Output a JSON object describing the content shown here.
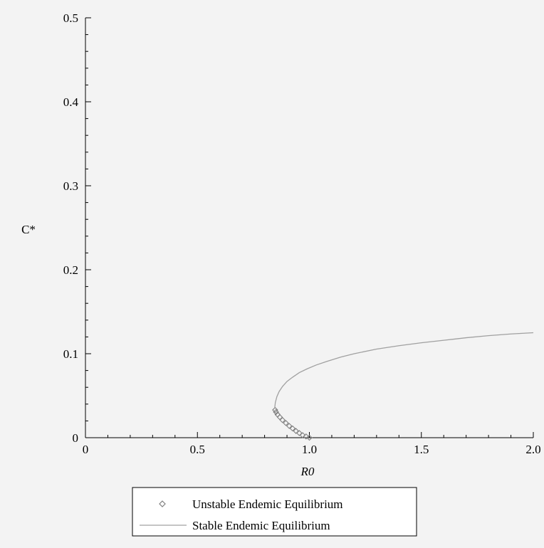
{
  "colors": {
    "background": "#f3f3f3",
    "axis": "#000000",
    "stable_line": "#a0a0a0",
    "unstable_marker": "#808080",
    "legend_border": "#000000"
  },
  "chart_data": {
    "type": "line",
    "title": "",
    "xlabel": "R0",
    "ylabel": "C*",
    "xlim": [
      0,
      2.0
    ],
    "ylim": [
      0,
      0.5
    ],
    "grid": false,
    "legend_position": "bottom-center",
    "x_ticks": [
      {
        "value": 0,
        "label": "0"
      },
      {
        "value": 0.5,
        "label": "0.5"
      },
      {
        "value": 1.0,
        "label": "1.0"
      },
      {
        "value": 1.5,
        "label": "1.5"
      },
      {
        "value": 2.0,
        "label": "2.0"
      }
    ],
    "y_ticks": [
      {
        "value": 0,
        "label": "0"
      },
      {
        "value": 0.1,
        "label": "0.1"
      },
      {
        "value": 0.2,
        "label": "0.2"
      },
      {
        "value": 0.3,
        "label": "0.3"
      },
      {
        "value": 0.4,
        "label": "0.4"
      },
      {
        "value": 0.5,
        "label": "0.5"
      }
    ],
    "series": [
      {
        "name": "Unstable Endemic Equilibrium",
        "style": "markers",
        "marker": "diamond",
        "x": [
          1.0,
          0.985,
          0.97,
          0.955,
          0.94,
          0.925,
          0.91,
          0.895,
          0.88,
          0.868,
          0.858,
          0.851,
          0.847
        ],
        "y": [
          0.0,
          0.0015,
          0.003,
          0.0055,
          0.008,
          0.011,
          0.014,
          0.0175,
          0.021,
          0.0245,
          0.0275,
          0.0305,
          0.033
        ]
      },
      {
        "name": "Stable Endemic Equilibrium",
        "style": "line",
        "x": [
          0.845,
          0.848,
          0.855,
          0.865,
          0.88,
          0.9,
          0.925,
          0.955,
          0.99,
          1.03,
          1.08,
          1.14,
          1.2,
          1.3,
          1.4,
          1.5,
          1.6,
          1.7,
          1.8,
          1.9,
          2.0
        ],
        "y": [
          0.035,
          0.042,
          0.049,
          0.055,
          0.061,
          0.067,
          0.072,
          0.0775,
          0.082,
          0.0865,
          0.091,
          0.096,
          0.1,
          0.1055,
          0.1095,
          0.113,
          0.116,
          0.119,
          0.1215,
          0.1235,
          0.125
        ]
      }
    ]
  }
}
